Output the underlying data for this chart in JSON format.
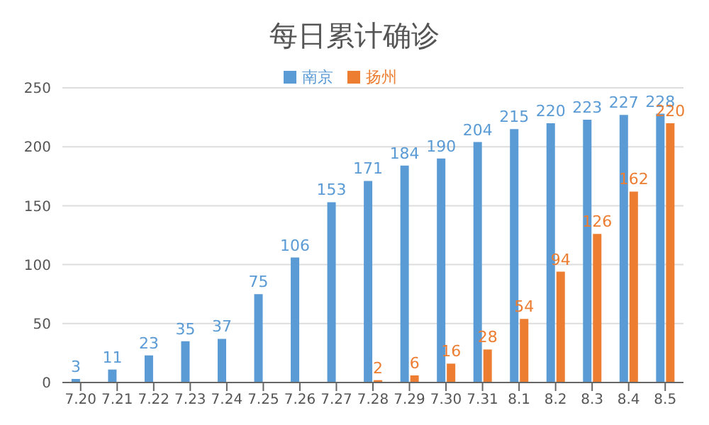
{
  "chart_data": {
    "type": "bar",
    "title": "每日累计确诊",
    "categories": [
      "7.20",
      "7.21",
      "7.22",
      "7.23",
      "7.24",
      "7.25",
      "7.26",
      "7.27",
      "7.28",
      "7.29",
      "7.30",
      "7.31",
      "8.1",
      "8.2",
      "8.3",
      "8.4",
      "8.5"
    ],
    "series": [
      {
        "name": "南京",
        "color": "#5b9bd5",
        "values": [
          3,
          11,
          23,
          35,
          37,
          75,
          106,
          153,
          171,
          184,
          190,
          204,
          215,
          220,
          223,
          227,
          228
        ]
      },
      {
        "name": "扬州",
        "color": "#ed7d31",
        "values": [
          null,
          null,
          null,
          null,
          null,
          null,
          null,
          null,
          2,
          6,
          16,
          28,
          54,
          94,
          126,
          162,
          220
        ]
      }
    ],
    "ylim": [
      0,
      250
    ],
    "yticks": [
      0,
      50,
      100,
      150,
      200,
      250
    ],
    "grid": "y",
    "legend": "top",
    "data_labels": true
  }
}
